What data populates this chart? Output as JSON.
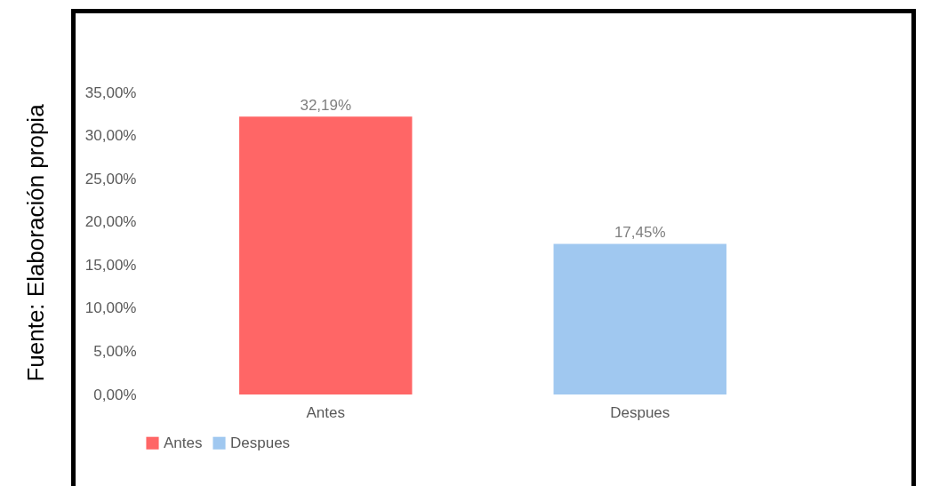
{
  "chart_data": {
    "type": "bar",
    "categories": [
      "Antes",
      "Despues"
    ],
    "series": [
      {
        "name": "Antes",
        "color": "#ff6666",
        "values": [
          32.19,
          null
        ],
        "value_labels": [
          "32,19%",
          null
        ]
      },
      {
        "name": "Despues",
        "color": "#a0c8f0",
        "values": [
          null,
          17.45
        ],
        "value_labels": [
          null,
          "17,45%"
        ]
      }
    ],
    "ylim": [
      0,
      35
    ],
    "yticks": [
      {
        "value": 0,
        "label": "0,00%"
      },
      {
        "value": 5,
        "label": "5,00%"
      },
      {
        "value": 10,
        "label": "10,00%"
      },
      {
        "value": 15,
        "label": "15,00%"
      },
      {
        "value": 20,
        "label": "20,00%"
      },
      {
        "value": 25,
        "label": "25,00%"
      },
      {
        "value": 30,
        "label": "30,00%"
      },
      {
        "value": 35,
        "label": "35,00%"
      }
    ],
    "grid": false,
    "legend": "bottom",
    "annotations": [
      "Fuente: Elaboración propia"
    ]
  }
}
